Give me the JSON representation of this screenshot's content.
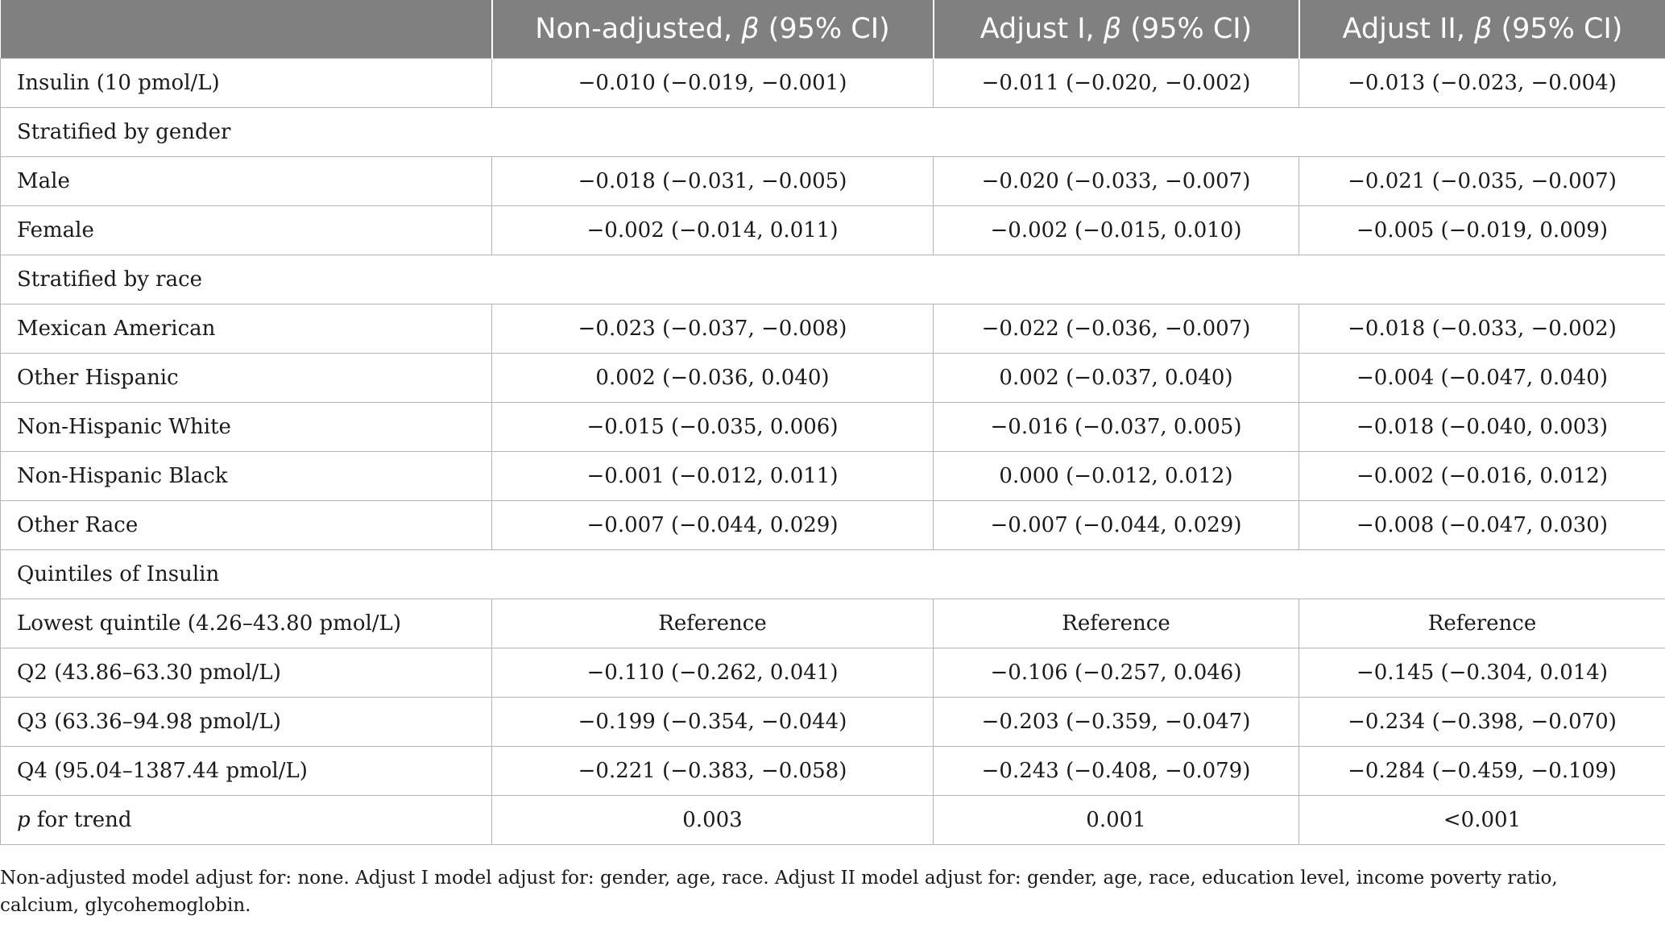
{
  "header": {
    "col0": "",
    "col1_prefix": "Non-adjusted, ",
    "col1_beta": "β",
    "col1_suffix": " (95% CI)",
    "col2_prefix": "Adjust I, ",
    "col2_beta": "β",
    "col2_suffix": " (95% CI)",
    "col3_prefix": "Adjust II, ",
    "col3_beta": "β",
    "col3_suffix": " (95% CI)"
  },
  "rows": {
    "r0": {
      "label": "Insulin (10 pmol/L)",
      "v1": "−0.010 (−0.019, −0.001)",
      "v2": "−0.011 (−0.020, −0.002)",
      "v3": "−0.013 (−0.023, −0.004)"
    },
    "s1": {
      "label": "Stratified by gender"
    },
    "r1": {
      "label": "Male",
      "v1": "−0.018 (−0.031, −0.005)",
      "v2": "−0.020 (−0.033, −0.007)",
      "v3": "−0.021 (−0.035, −0.007)"
    },
    "r2": {
      "label": "Female",
      "v1": "−0.002 (−0.014, 0.011)",
      "v2": "−0.002 (−0.015, 0.010)",
      "v3": "−0.005 (−0.019, 0.009)"
    },
    "s2": {
      "label": "Stratified by race"
    },
    "r3": {
      "label": "Mexican American",
      "v1": "−0.023 (−0.037, −0.008)",
      "v2": "−0.022 (−0.036, −0.007)",
      "v3": "−0.018 (−0.033, −0.002)"
    },
    "r4": {
      "label": "Other Hispanic",
      "v1": "0.002 (−0.036, 0.040)",
      "v2": "0.002 (−0.037, 0.040)",
      "v3": "−0.004 (−0.047, 0.040)"
    },
    "r5": {
      "label": "Non-Hispanic White",
      "v1": "−0.015 (−0.035, 0.006)",
      "v2": "−0.016 (−0.037, 0.005)",
      "v3": "−0.018 (−0.040, 0.003)"
    },
    "r6": {
      "label": "Non-Hispanic Black",
      "v1": "−0.001 (−0.012, 0.011)",
      "v2": "0.000 (−0.012, 0.012)",
      "v3": "−0.002 (−0.016, 0.012)"
    },
    "r7": {
      "label": "Other Race",
      "v1": "−0.007 (−0.044, 0.029)",
      "v2": "−0.007 (−0.044, 0.029)",
      "v3": "−0.008 (−0.047, 0.030)"
    },
    "s3": {
      "label": "Quintiles of Insulin"
    },
    "r8": {
      "label": "Lowest quintile (4.26–43.80 pmol/L)",
      "v1": "Reference",
      "v2": "Reference",
      "v3": "Reference"
    },
    "r9": {
      "label": "Q2 (43.86–63.30 pmol/L)",
      "v1": "−0.110 (−0.262, 0.041)",
      "v2": "−0.106 (−0.257, 0.046)",
      "v3": "−0.145 (−0.304, 0.014)"
    },
    "r10": {
      "label": "Q3 (63.36–94.98 pmol/L)",
      "v1": "−0.199 (−0.354, −0.044)",
      "v2": "−0.203 (−0.359, −0.047)",
      "v3": "−0.234 (−0.398, −0.070)"
    },
    "r11": {
      "label": "Q4 (95.04–1387.44 pmol/L)",
      "v1": "−0.221 (−0.383, −0.058)",
      "v2": "−0.243 (−0.408, −0.079)",
      "v3": "−0.284 (−0.459, −0.109)"
    },
    "r12": {
      "label_italic": "p",
      "label_rest": " for trend",
      "v1": "0.003",
      "v2": "0.001",
      "v3": "<0.001"
    }
  },
  "footnote": "Non-adjusted model adjust for: none. Adjust I model adjust for: gender, age, race. Adjust II model adjust for: gender, age, race, education level, income poverty ratio, calcium, glycohemoglobin."
}
